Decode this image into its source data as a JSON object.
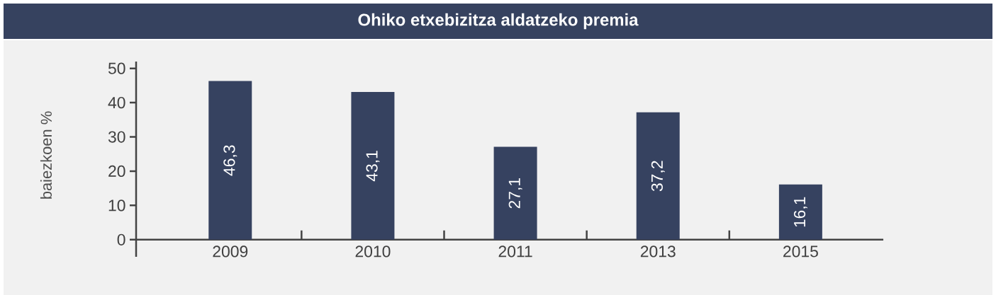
{
  "chart_data": {
    "type": "bar",
    "title": "Ohiko etxebizitza aldatzeko premia",
    "ylabel": "baiezkoen %",
    "categories": [
      "2009",
      "2010",
      "2011",
      "2013",
      "2015"
    ],
    "values": [
      46.3,
      43.1,
      27.1,
      37.2,
      16.1
    ],
    "value_labels": [
      "46,3",
      "43,1",
      "27,1",
      "37,2",
      "16,1"
    ],
    "color": "#364260",
    "ylim": [
      -5,
      52
    ],
    "yticks": [
      0,
      10,
      20,
      30,
      40,
      50
    ]
  }
}
